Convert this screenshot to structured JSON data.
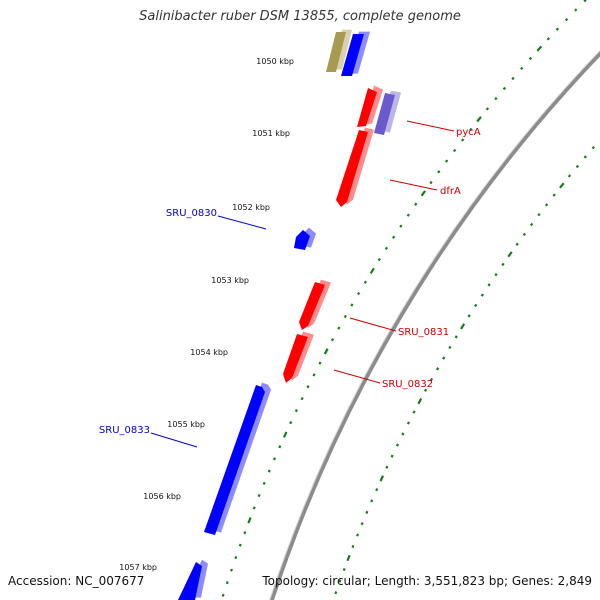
{
  "title": "Salinibacter ruber DSM 13855, complete genome",
  "accession": "Accession: NC_007677",
  "summary": "Topology: circular; Length: 3,551,823 bp; Genes: 2,849",
  "colors": {
    "backbone": "#8c8c8c",
    "forward_gene": "#ff0000",
    "reverse_gene": "#0000ff",
    "rna": "#a89a50",
    "highlight": "#6a5acd",
    "tick": "#1a7a1a",
    "forward_label": "#cc0000",
    "reverse_label": "#0000cc"
  },
  "kbp_labels": [
    "1050 kbp",
    "1051 kbp",
    "1052 kbp",
    "1053 kbp",
    "1054 kbp",
    "1055 kbp",
    "1056 kbp",
    "1057 kbp"
  ],
  "gene_labels": [
    {
      "text": "pycA",
      "strand": "forward"
    },
    {
      "text": "dfrA",
      "strand": "forward"
    },
    {
      "text": "SRU_0830",
      "strand": "reverse"
    },
    {
      "text": "SRU_0831",
      "strand": "forward"
    },
    {
      "text": "SRU_0832",
      "strand": "forward"
    },
    {
      "text": "SRU_0833",
      "strand": "reverse"
    }
  ]
}
